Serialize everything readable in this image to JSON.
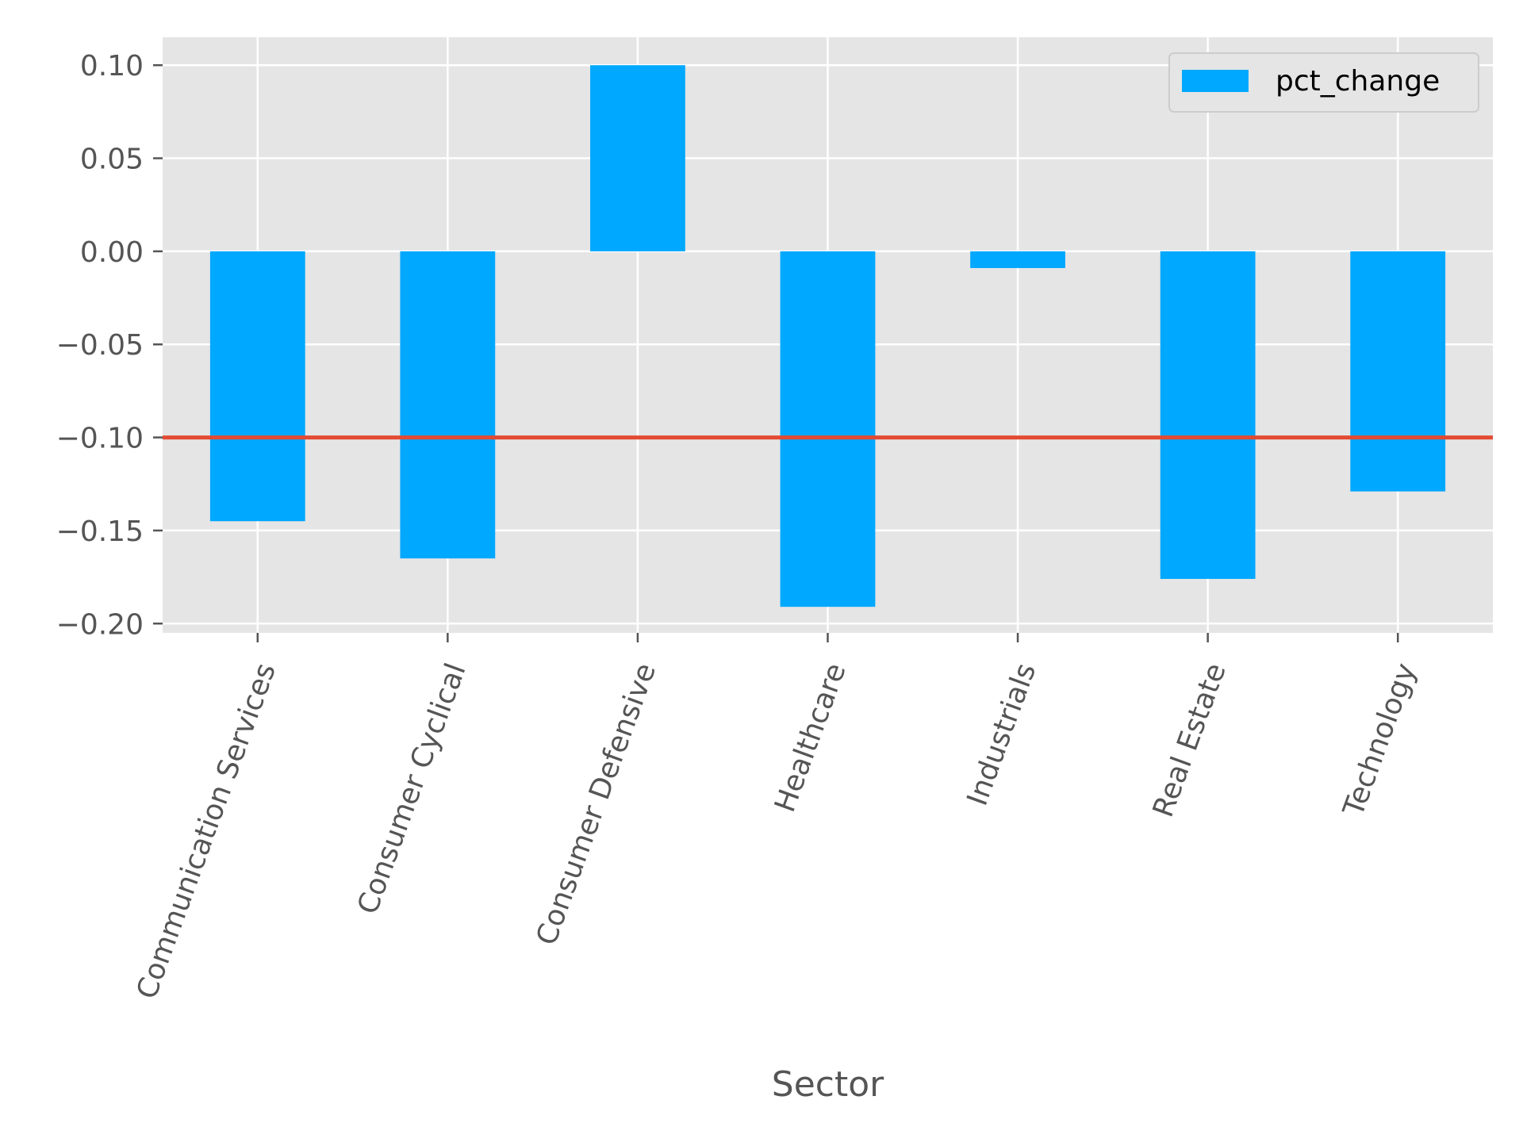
{
  "chart_data": {
    "type": "bar",
    "xlabel": "Sector",
    "ylabel": "",
    "title": "",
    "categories": [
      "Communication Services",
      "Consumer Cyclical",
      "Consumer Defensive",
      "Healthcare",
      "Industrials",
      "Real Estate",
      "Technology"
    ],
    "series": [
      {
        "name": "pct_change",
        "values": [
          -0.145,
          -0.165,
          0.1,
          -0.191,
          -0.009,
          -0.176,
          -0.129
        ],
        "color": "#00a8ff"
      }
    ],
    "reference_line": {
      "y": -0.1,
      "color": "#e24a33"
    },
    "ylim": [
      -0.205,
      0.115
    ],
    "yticks": [
      0.1,
      0.05,
      0.0,
      -0.05,
      -0.1,
      -0.15,
      -0.2
    ],
    "ytick_labels": [
      "0.10",
      "0.05",
      "0.00",
      "−0.05",
      "−0.10",
      "−0.15",
      "−0.20"
    ],
    "grid": true,
    "legend_position": "top-right",
    "background": "#e5e5e5",
    "grid_color": "#ffffff",
    "text_color": "#555555"
  }
}
